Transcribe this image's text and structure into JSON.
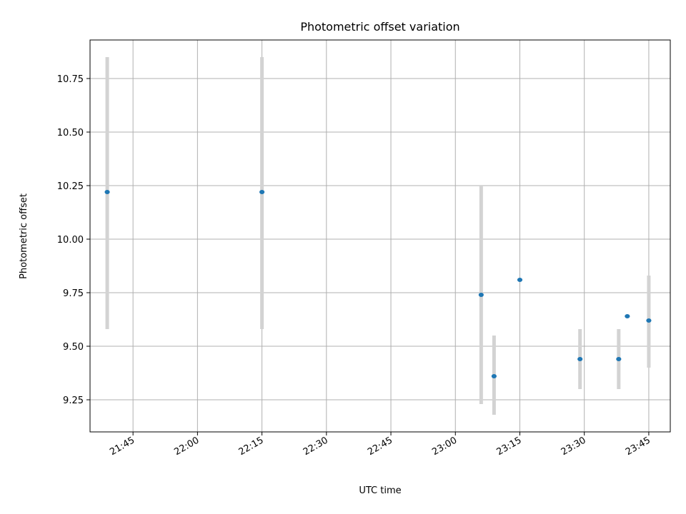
{
  "chart_data": {
    "type": "scatter",
    "title": "Photometric offset variation",
    "xlabel": "UTC time",
    "ylabel": "Photometric offset",
    "x_axis_kind": "time",
    "xlim": [
      "21:35",
      "23:50"
    ],
    "ylim": [
      9.1,
      10.93
    ],
    "grid": true,
    "x_ticks": [
      "21:45",
      "22:00",
      "22:15",
      "22:30",
      "22:45",
      "23:00",
      "23:15",
      "23:30",
      "23:45"
    ],
    "y_ticks": [
      9.25,
      9.5,
      9.75,
      10.0,
      10.25,
      10.5,
      10.75
    ],
    "y_tick_labels": [
      "9.25",
      "9.50",
      "9.75",
      "10.00",
      "10.25",
      "10.50",
      "10.75"
    ],
    "series": [
      {
        "marker_color": "#1f77b4",
        "errorbar_color": "#d3d3d3",
        "points": [
          {
            "x": "21:39",
            "y": 10.22,
            "err_low": 9.58,
            "err_high": 10.85
          },
          {
            "x": "22:15",
            "y": 10.22,
            "err_low": 9.58,
            "err_high": 10.85
          },
          {
            "x": "23:06",
            "y": 9.74,
            "err_low": 9.23,
            "err_high": 10.25
          },
          {
            "x": "23:09",
            "y": 9.36,
            "err_low": 9.18,
            "err_high": 9.55
          },
          {
            "x": "23:15",
            "y": 9.81,
            "err_low": 9.81,
            "err_high": 9.81
          },
          {
            "x": "23:29",
            "y": 9.44,
            "err_low": 9.3,
            "err_high": 9.58
          },
          {
            "x": "23:38",
            "y": 9.44,
            "err_low": 9.3,
            "err_high": 9.58
          },
          {
            "x": "23:40",
            "y": 9.64,
            "err_low": 9.64,
            "err_high": 9.64
          },
          {
            "x": "23:45",
            "y": 9.62,
            "err_low": 9.4,
            "err_high": 9.83
          }
        ]
      }
    ]
  }
}
